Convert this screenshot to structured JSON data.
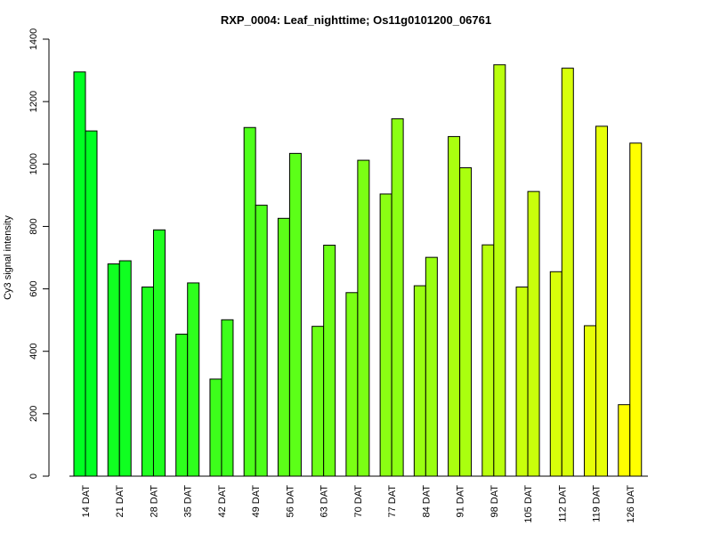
{
  "chart_data": {
    "type": "bar",
    "title": "RXP_0004: Leaf_nighttime; Os11g0101200_06761",
    "xlabel": "",
    "ylabel": "Cy3 signal intensity",
    "ylim": [
      0,
      1400
    ],
    "yticks": [
      0,
      200,
      400,
      600,
      800,
      1000,
      1200,
      1400
    ],
    "grid": false,
    "categories": [
      "14 DAT",
      "21 DAT",
      "28 DAT",
      "35 DAT",
      "42 DAT",
      "49 DAT",
      "56 DAT",
      "63 DAT",
      "70 DAT",
      "77 DAT",
      "84 DAT",
      "91 DAT",
      "98 DAT",
      "105 DAT",
      "112 DAT",
      "119 DAT",
      "126 DAT"
    ],
    "series": [
      {
        "values": [
          1295,
          680,
          606,
          455,
          311,
          1117,
          826,
          480,
          588,
          904,
          610,
          1088,
          741,
          606,
          655,
          482,
          229
        ]
      },
      {
        "values": [
          1106,
          690,
          789,
          619,
          501,
          868,
          1034,
          740,
          1012,
          1145,
          701,
          988,
          1318,
          912,
          1307,
          1121,
          1067
        ]
      }
    ],
    "colors": [
      "#00ff22",
      "#10ff21",
      "#1fff1f",
      "#2eff1d",
      "#3dff1b",
      "#4dff1a",
      "#5cff18",
      "#6cff16",
      "#7bff14",
      "#8bff13",
      "#9aff11",
      "#aaff0f",
      "#b9ff0d",
      "#c9ff0b",
      "#d8ff0a",
      "#e7ff08",
      "#ffff00"
    ]
  }
}
